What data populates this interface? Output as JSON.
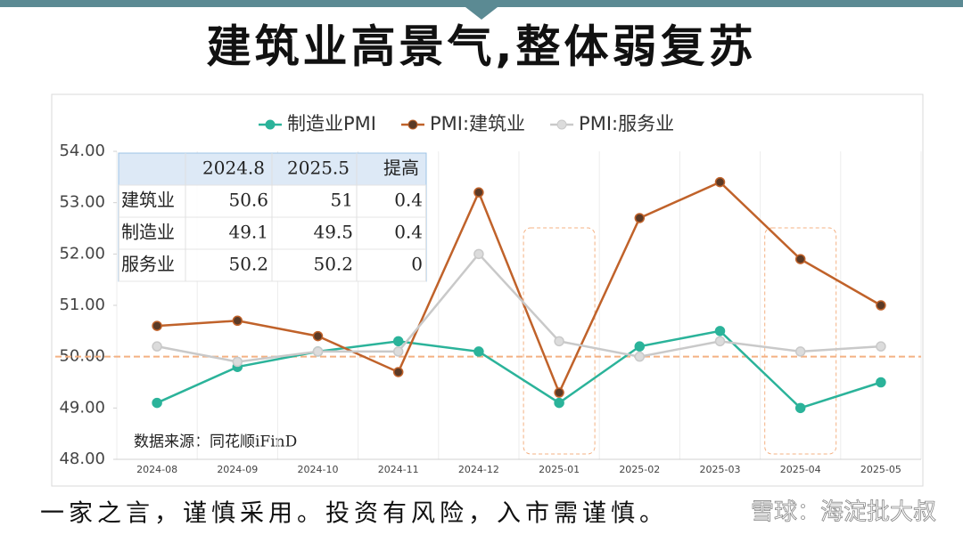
{
  "title": "建筑业高景气,整体弱复苏",
  "footer": "一家之言，谨慎采用。投资有风险，入市需谨慎。",
  "watermark": "雪球：海淀批大叔",
  "table": {
    "columns": [
      "2024.8",
      "2025.5",
      "提高"
    ],
    "rows": [
      {
        "label": "建筑业",
        "values": [
          50.6,
          51,
          0.4
        ]
      },
      {
        "label": "制造业",
        "values": [
          49.1,
          49.5,
          0.4
        ]
      },
      {
        "label": "服务业",
        "values": [
          50.2,
          50.2,
          0
        ]
      }
    ]
  },
  "chart_data": {
    "type": "line",
    "categories": [
      "2024-08",
      "2024-09",
      "2024-10",
      "2024-11",
      "2024-12",
      "2025-01",
      "2025-02",
      "2025-03",
      "2025-04",
      "2025-05"
    ],
    "series": [
      {
        "name": "制造业PMI",
        "color": "#2bb39a",
        "marker_fill": "#2bb39a",
        "values": [
          49.1,
          49.8,
          50.1,
          50.3,
          50.1,
          49.1,
          50.2,
          50.5,
          49.0,
          49.5
        ]
      },
      {
        "name": "PMI:建筑业",
        "color": "#c0622a",
        "marker_fill": "#5b3a26",
        "values": [
          50.6,
          50.7,
          50.4,
          49.7,
          53.2,
          49.3,
          52.7,
          53.4,
          51.9,
          51.0
        ]
      },
      {
        "name": "PMI:服务业",
        "color": "#c9c9c9",
        "marker_fill": "#dcdcdc",
        "values": [
          50.2,
          49.9,
          50.1,
          50.1,
          52.0,
          50.3,
          50.0,
          50.3,
          50.1,
          50.2
        ]
      }
    ],
    "ylim": [
      48,
      54
    ],
    "yticks": [
      {
        "value": 48,
        "label": "48.00"
      },
      {
        "value": 49,
        "label": "49.00"
      },
      {
        "value": 50,
        "label": "50.00"
      },
      {
        "value": 51,
        "label": "51.00"
      },
      {
        "value": 52,
        "label": "52.00"
      },
      {
        "value": 53,
        "label": "53.00"
      },
      {
        "value": 54,
        "label": "54.00"
      }
    ],
    "reference_line": 50,
    "reference_color": "#f4b183",
    "highlights": [
      "2025-01",
      "2025-04"
    ],
    "legend": "top",
    "source": "数据来源：同花顺iFinD"
  }
}
